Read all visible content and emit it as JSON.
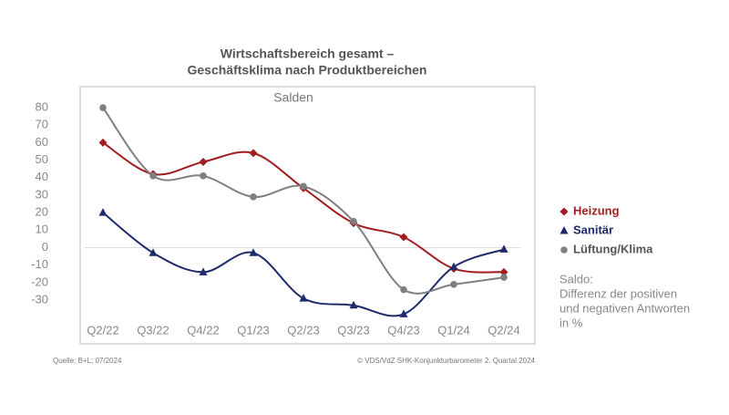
{
  "chart_data": {
    "type": "line",
    "title": "Wirtschaftsbereich gesamt –",
    "subtitle": "Geschäftsklima nach Produktbereichen",
    "annotation": "Salden",
    "categories": [
      "Q2/22",
      "Q3/22",
      "Q4/22",
      "Q1/23",
      "Q2/23",
      "Q3/23",
      "Q4/23",
      "Q1/24",
      "Q2/24"
    ],
    "series": [
      {
        "name": "Heizung",
        "color": "#a11d21",
        "marker": "diamond",
        "values": [
          60,
          42,
          49,
          54,
          34,
          14,
          6,
          -12,
          -14
        ]
      },
      {
        "name": "Sanitär",
        "color": "#1f2a6b",
        "marker": "triangle",
        "values": [
          20,
          -3,
          -14,
          -3,
          -29,
          -33,
          -38,
          -11,
          -1
        ]
      },
      {
        "name": "Lüftung/Klima",
        "color": "#7f7f7f",
        "marker": "circle",
        "values": [
          80,
          41,
          41,
          29,
          35,
          15,
          -24,
          -21,
          -17
        ]
      }
    ],
    "ylim": [
      -55,
      92
    ],
    "yticks": [
      80,
      70,
      60,
      50,
      40,
      30,
      20,
      10,
      0,
      -10,
      -20,
      -30
    ],
    "note": [
      "Saldo:",
      "Differenz der positiven",
      "und negativen Antworten",
      "in %"
    ],
    "source": "Quelle: B+L; 07/2024",
    "copyright": "© VDS/VdZ SHK-Konjunkturbarometer 2. Quartal 2024"
  }
}
